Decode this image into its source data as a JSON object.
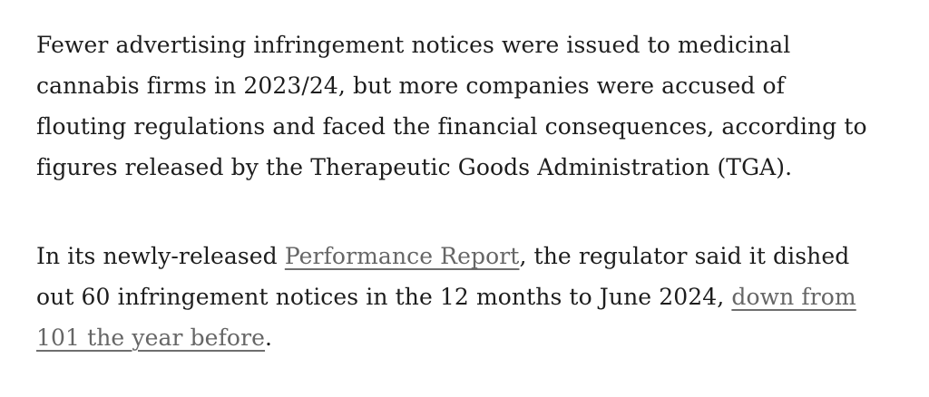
{
  "colors": {
    "background": "#ffffff",
    "body_text": "#1d1d1d",
    "link_text": "#666666",
    "link_underline": "#6e6e6e"
  },
  "article": {
    "paragraph_1": {
      "text": "Fewer advertising infringement notices were issued to medicinal cannabis firms in 2023/24, but more companies were accused of flouting regulations and faced the financial consequences, according to figures released by the Therapeutic Goods Administration (TGA)."
    },
    "paragraph_2": {
      "before_link_1": "In its newly-released ",
      "link_1": "Performance Report",
      "between_links": ", the regulator said it dished out 60 infringement notices in the 12 months to June 2024, ",
      "link_2": "down from 101 the year before",
      "after_link_2": "."
    }
  }
}
